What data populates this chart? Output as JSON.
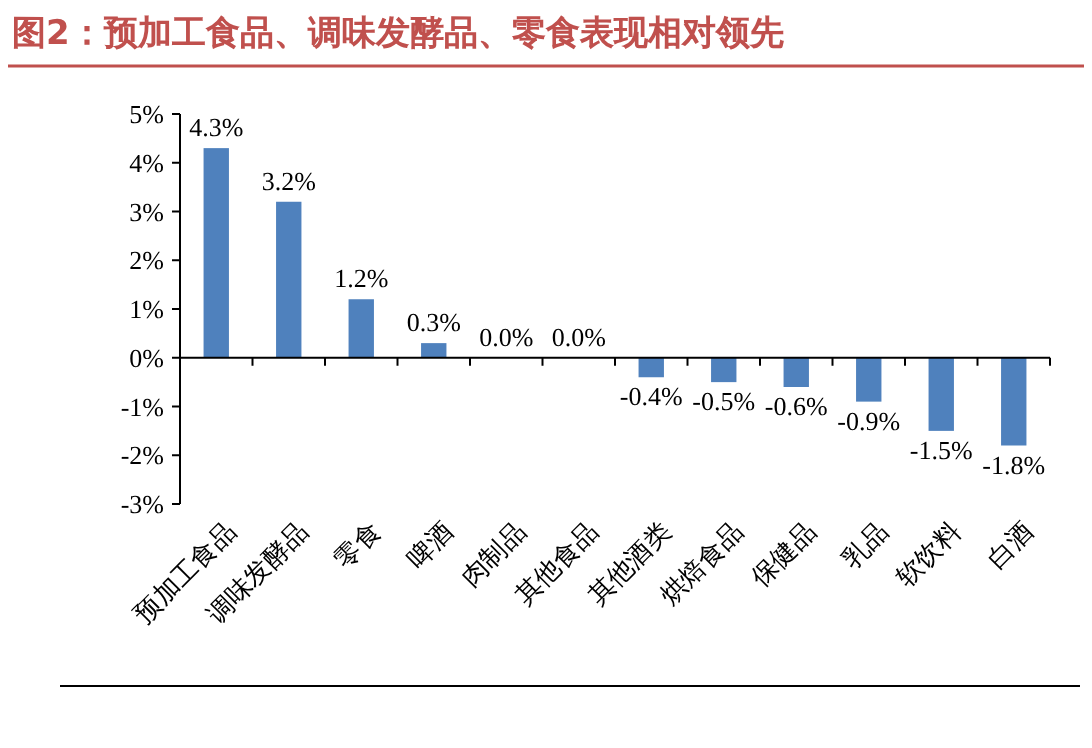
{
  "chart_data": {
    "type": "bar",
    "title": "图2：预加工食品、调味发酵品、零食表现相对领先",
    "categories": [
      "预加工食品",
      "调味发酵品",
      "零食",
      "啤酒",
      "肉制品",
      "其他食品",
      "其他酒类",
      "烘焙食品",
      "保健品",
      "乳品",
      "软饮料",
      "白酒"
    ],
    "values": [
      4.3,
      3.2,
      1.2,
      0.3,
      0.0,
      0.0,
      -0.4,
      -0.5,
      -0.6,
      -0.9,
      -1.5,
      -1.8
    ],
    "value_labels": [
      "4.3%",
      "3.2%",
      "1.2%",
      "0.3%",
      "0.0%",
      "0.0%",
      "-0.4%",
      "-0.5%",
      "-0.6%",
      "-0.9%",
      "-1.5%",
      "-1.8%"
    ],
    "color": "#4f81bd",
    "ylim": [
      -3,
      5
    ],
    "yticks": [
      {
        "value": -3,
        "label": "-3%"
      },
      {
        "value": -2,
        "label": "-2%"
      },
      {
        "value": -1,
        "label": "-1%"
      },
      {
        "value": 0,
        "label": "0%"
      },
      {
        "value": 1,
        "label": "1%"
      },
      {
        "value": 2,
        "label": "2%"
      },
      {
        "value": 3,
        "label": "3%"
      },
      {
        "value": 4,
        "label": "4%"
      },
      {
        "value": 5,
        "label": "5%"
      }
    ],
    "orientation": "vertical"
  }
}
